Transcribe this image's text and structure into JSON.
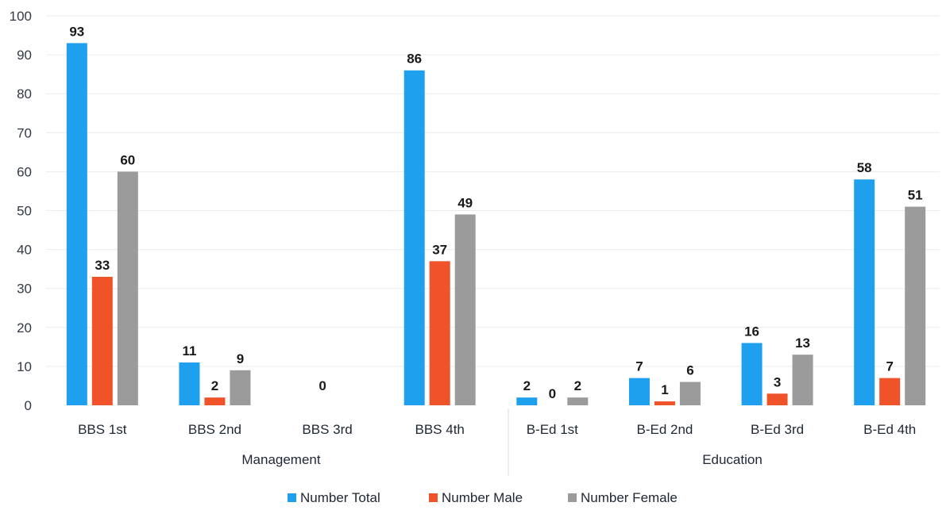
{
  "chart_data": {
    "type": "bar",
    "ylim": [
      0,
      100
    ],
    "yticks": [
      0,
      10,
      20,
      30,
      40,
      50,
      60,
      70,
      80,
      90,
      100
    ],
    "grid": true,
    "legend_position": "bottom",
    "categories": [
      "BBS 1st",
      "BBS 2nd",
      "BBS 3rd",
      "BBS 4th",
      "B-Ed 1st",
      "B-Ed 2nd",
      "B-Ed 3rd",
      "B-Ed 4th"
    ],
    "groups": [
      {
        "label": "Management",
        "categories": [
          "BBS 1st",
          "BBS 2nd",
          "BBS 3rd",
          "BBS 4th"
        ]
      },
      {
        "label": "Education",
        "categories": [
          "B-Ed 1st",
          "B-Ed 2nd",
          "B-Ed 3rd",
          "B-Ed 4th"
        ]
      }
    ],
    "series": [
      {
        "name": "Number Total",
        "color": "#1ea0ee",
        "values": [
          93,
          11,
          null,
          86,
          2,
          7,
          16,
          58
        ],
        "labels": [
          "93",
          "11",
          "",
          "86",
          "2",
          "7",
          "16",
          "58"
        ]
      },
      {
        "name": "Number Male",
        "color": "#f0522a",
        "values": [
          33,
          2,
          null,
          37,
          0,
          1,
          3,
          7
        ],
        "labels": [
          "33",
          "2",
          "",
          "37",
          "0",
          "1",
          "3",
          "7"
        ]
      },
      {
        "name": "Number Female",
        "color": "#9b9b9b",
        "values": [
          60,
          9,
          null,
          49,
          2,
          6,
          13,
          51
        ],
        "labels": [
          "60",
          "9",
          "",
          "49",
          "2",
          "6",
          "13",
          "51"
        ]
      }
    ],
    "annotations": [
      {
        "category": "BBS 3rd",
        "text": "0"
      }
    ]
  }
}
